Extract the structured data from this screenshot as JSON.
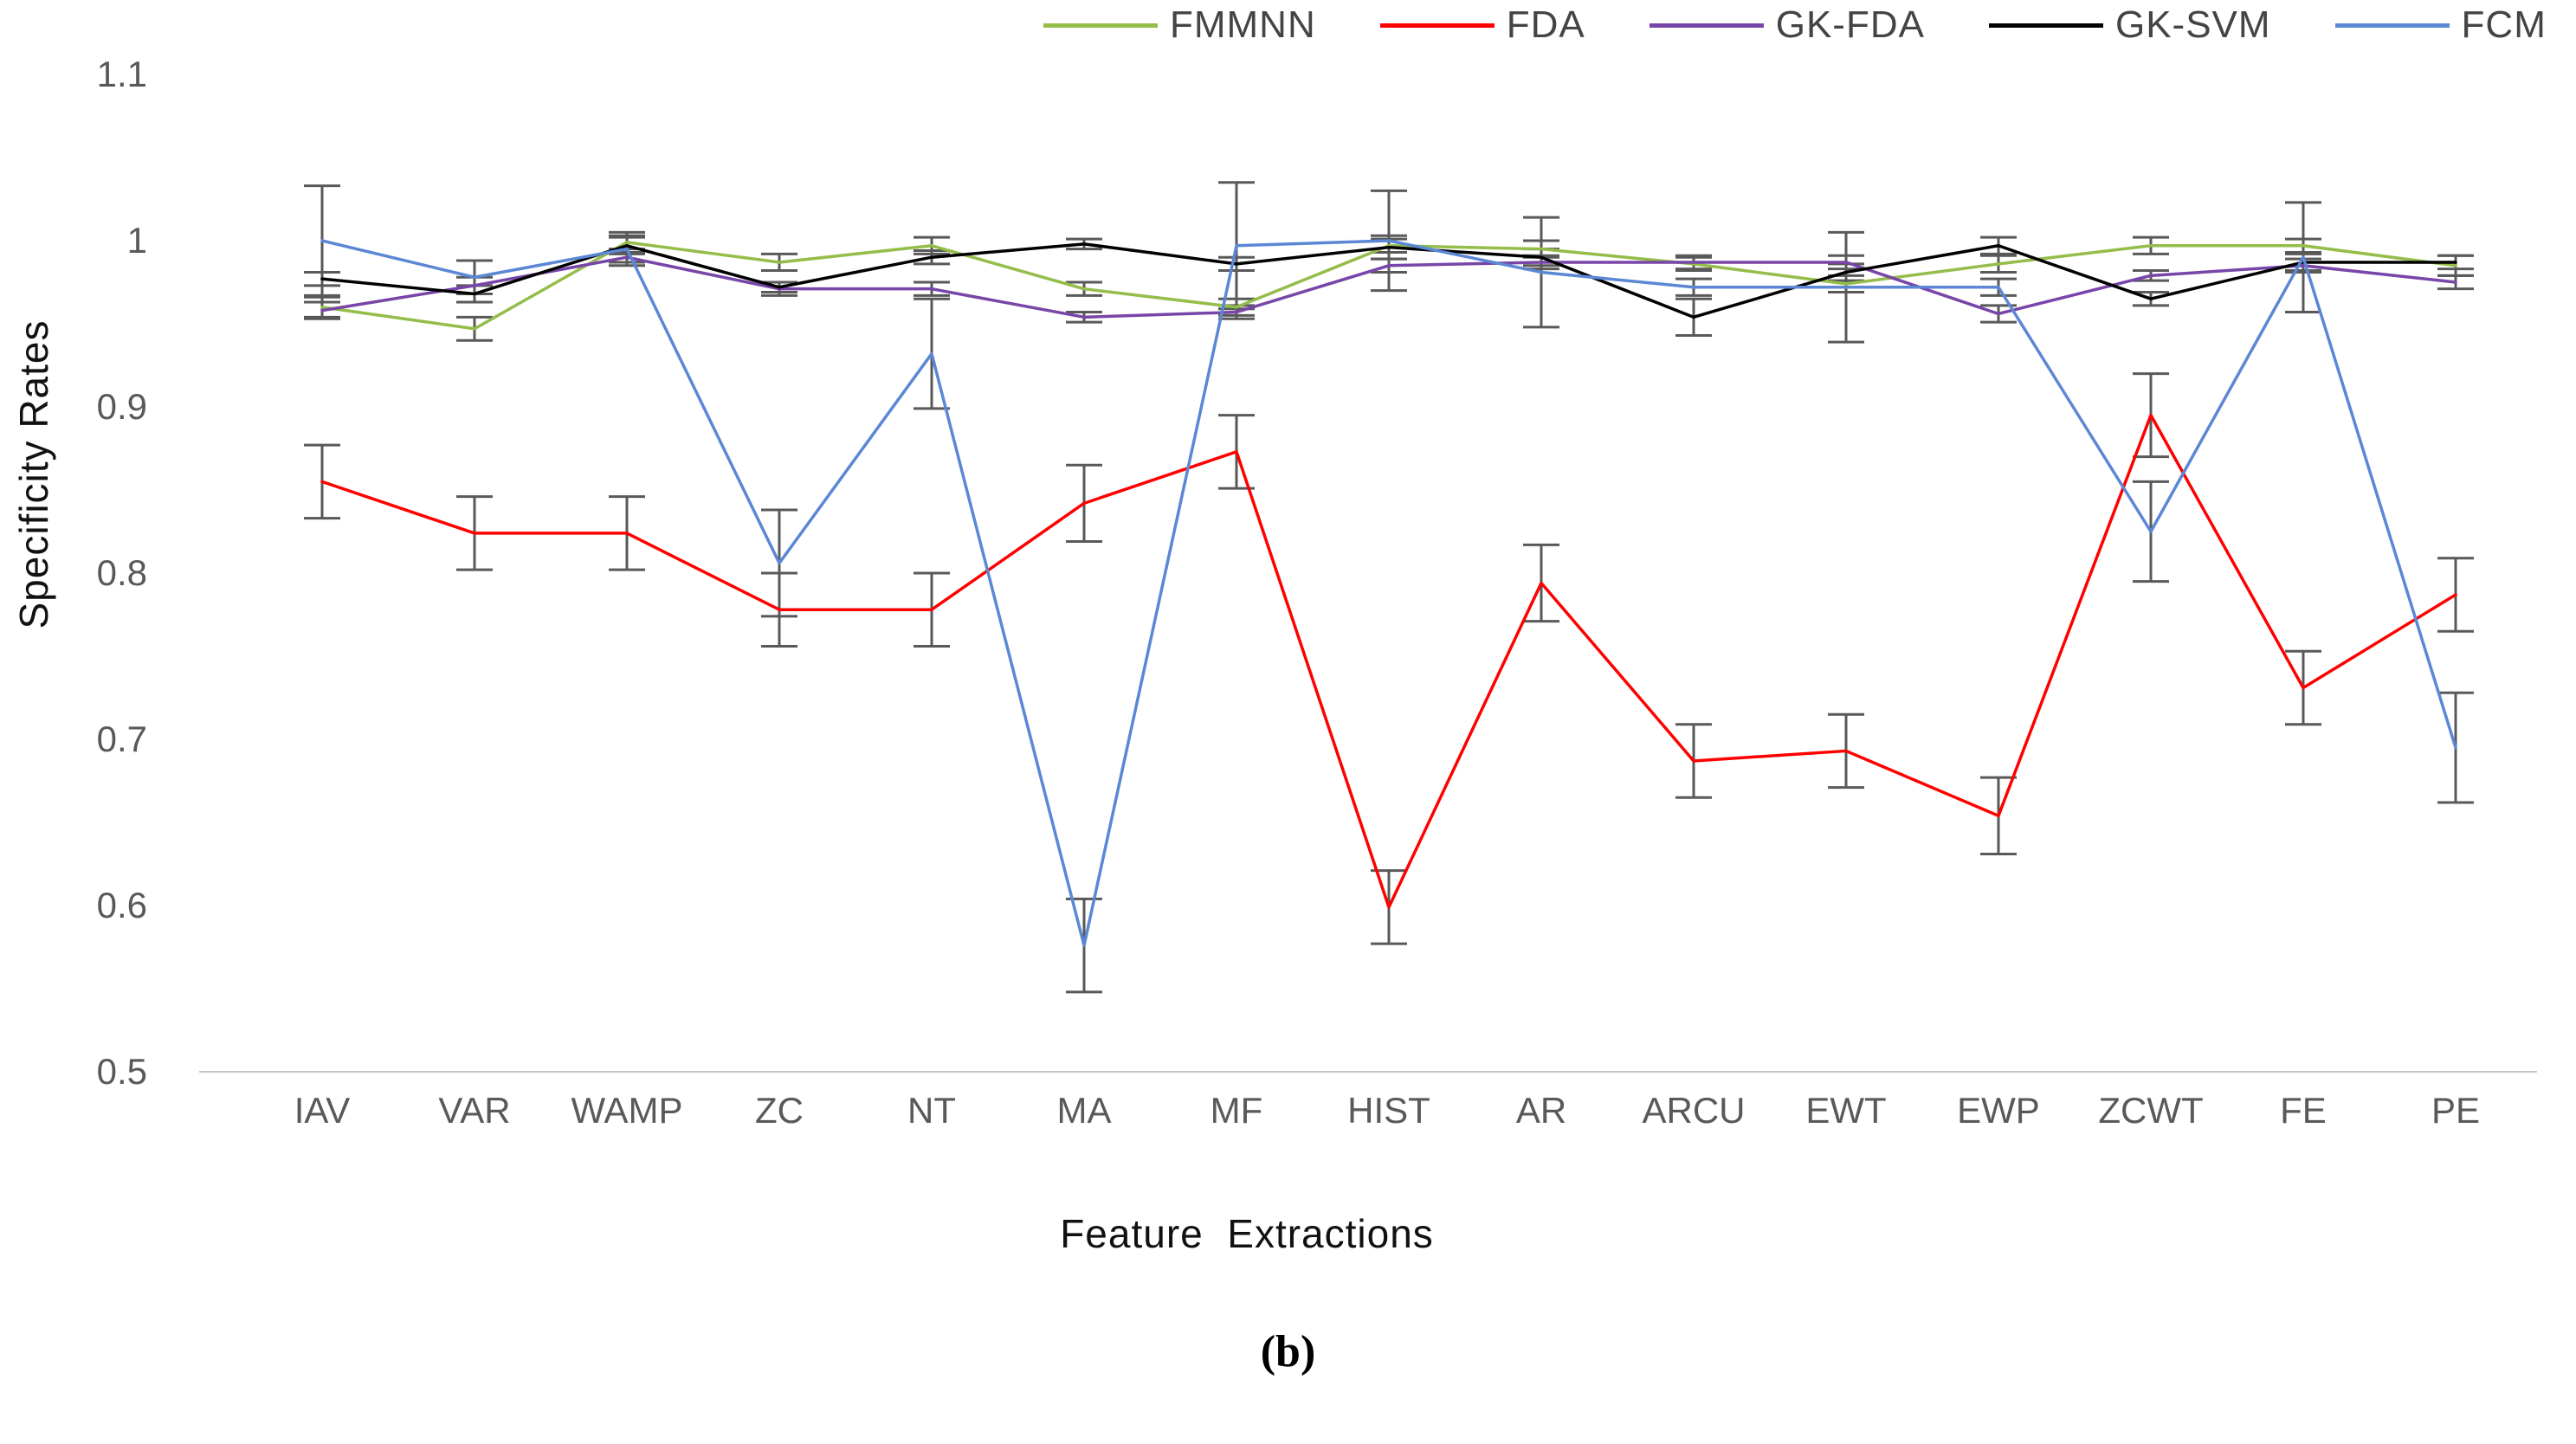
{
  "chart_data": {
    "type": "line",
    "title": "",
    "ylabel": "Specificity Rates",
    "xlabel": "Feature  Extractions",
    "caption": "(b)",
    "legend_position": "top",
    "grid": "baseline only at y=0.5",
    "ylim": [
      0.5,
      1.1
    ],
    "y_ticks": [
      {
        "label": "1.1",
        "value": 1.1
      },
      {
        "label": "1",
        "value": 1.0
      },
      {
        "label": "0.9",
        "value": 0.9
      },
      {
        "label": "0.8",
        "value": 0.8
      },
      {
        "label": "0.7",
        "value": 0.7
      },
      {
        "label": "0.6",
        "value": 0.6
      },
      {
        "label": "0.5",
        "value": 0.5
      }
    ],
    "categories": [
      "IAV",
      "VAR",
      "WAMP",
      "ZC",
      "NT",
      "MA",
      "MF",
      "HIST",
      "AR",
      "ARCU",
      "EWT",
      "EWP",
      "ZCWT",
      "FE",
      "PE"
    ],
    "error_bar_color": "#595959",
    "axis_text_color": "#595959",
    "baseline_color": "#C6C6C6",
    "series": [
      {
        "name": "FMMNN",
        "color": "#94BD4A",
        "values": [
          0.96,
          0.947,
          0.999,
          0.987,
          0.997,
          0.971,
          0.96,
          0.997,
          0.995,
          0.986,
          0.974,
          0.986,
          0.997,
          0.997,
          0.985
        ],
        "errors": [
          0.006,
          0.007,
          0.006,
          0.005,
          0.005,
          0.004,
          0.005,
          0.004,
          0.005,
          0.004,
          0.005,
          0.005,
          0.005,
          0.004,
          0.006
        ]
      },
      {
        "name": "FDA",
        "color": "#FF0000",
        "values": [
          0.855,
          0.824,
          0.824,
          0.778,
          0.778,
          0.842,
          0.873,
          0.599,
          0.794,
          0.687,
          0.693,
          0.654,
          0.895,
          0.731,
          0.787
        ],
        "errors": [
          0.022,
          0.022,
          0.022,
          0.022,
          0.022,
          0.023,
          0.022,
          0.022,
          0.023,
          0.022,
          0.022,
          0.023,
          0.025,
          0.022,
          0.022
        ]
      },
      {
        "name": "GK-FDA",
        "color": "#7845A8",
        "values": [
          0.958,
          0.973,
          0.99,
          0.971,
          0.971,
          0.954,
          0.957,
          0.985,
          0.987,
          0.987,
          0.987,
          0.956,
          0.979,
          0.985,
          0.975
        ],
        "errors": [
          0.005,
          0.005,
          0.005,
          0.004,
          0.004,
          0.003,
          0.004,
          0.004,
          0.004,
          0.004,
          0.004,
          0.005,
          0.003,
          0.004,
          0.004
        ]
      },
      {
        "name": "GK-SVM",
        "color": "#000000",
        "values": [
          0.977,
          0.968,
          0.997,
          0.972,
          0.99,
          0.998,
          0.986,
          0.996,
          0.99,
          0.954,
          0.981,
          0.997,
          0.965,
          0.987,
          0.987
        ],
        "errors": [
          0.004,
          0.005,
          0.005,
          0.003,
          0.004,
          0.003,
          0.004,
          0.007,
          0.005,
          0.011,
          0.005,
          0.005,
          0.004,
          0.005,
          0.004
        ]
      },
      {
        "name": "FCM",
        "color": "#5B87D5",
        "values": [
          1.0,
          0.978,
          0.995,
          0.806,
          0.932,
          0.576,
          0.997,
          1.0,
          0.981,
          0.972,
          0.972,
          0.972,
          0.825,
          0.99,
          0.695
        ],
        "errors": [
          0.033,
          0.01,
          0.008,
          0.032,
          0.033,
          0.028,
          0.038,
          0.03,
          0.033,
          0.005,
          0.033,
          0.005,
          0.03,
          0.033,
          0.033
        ]
      }
    ]
  }
}
